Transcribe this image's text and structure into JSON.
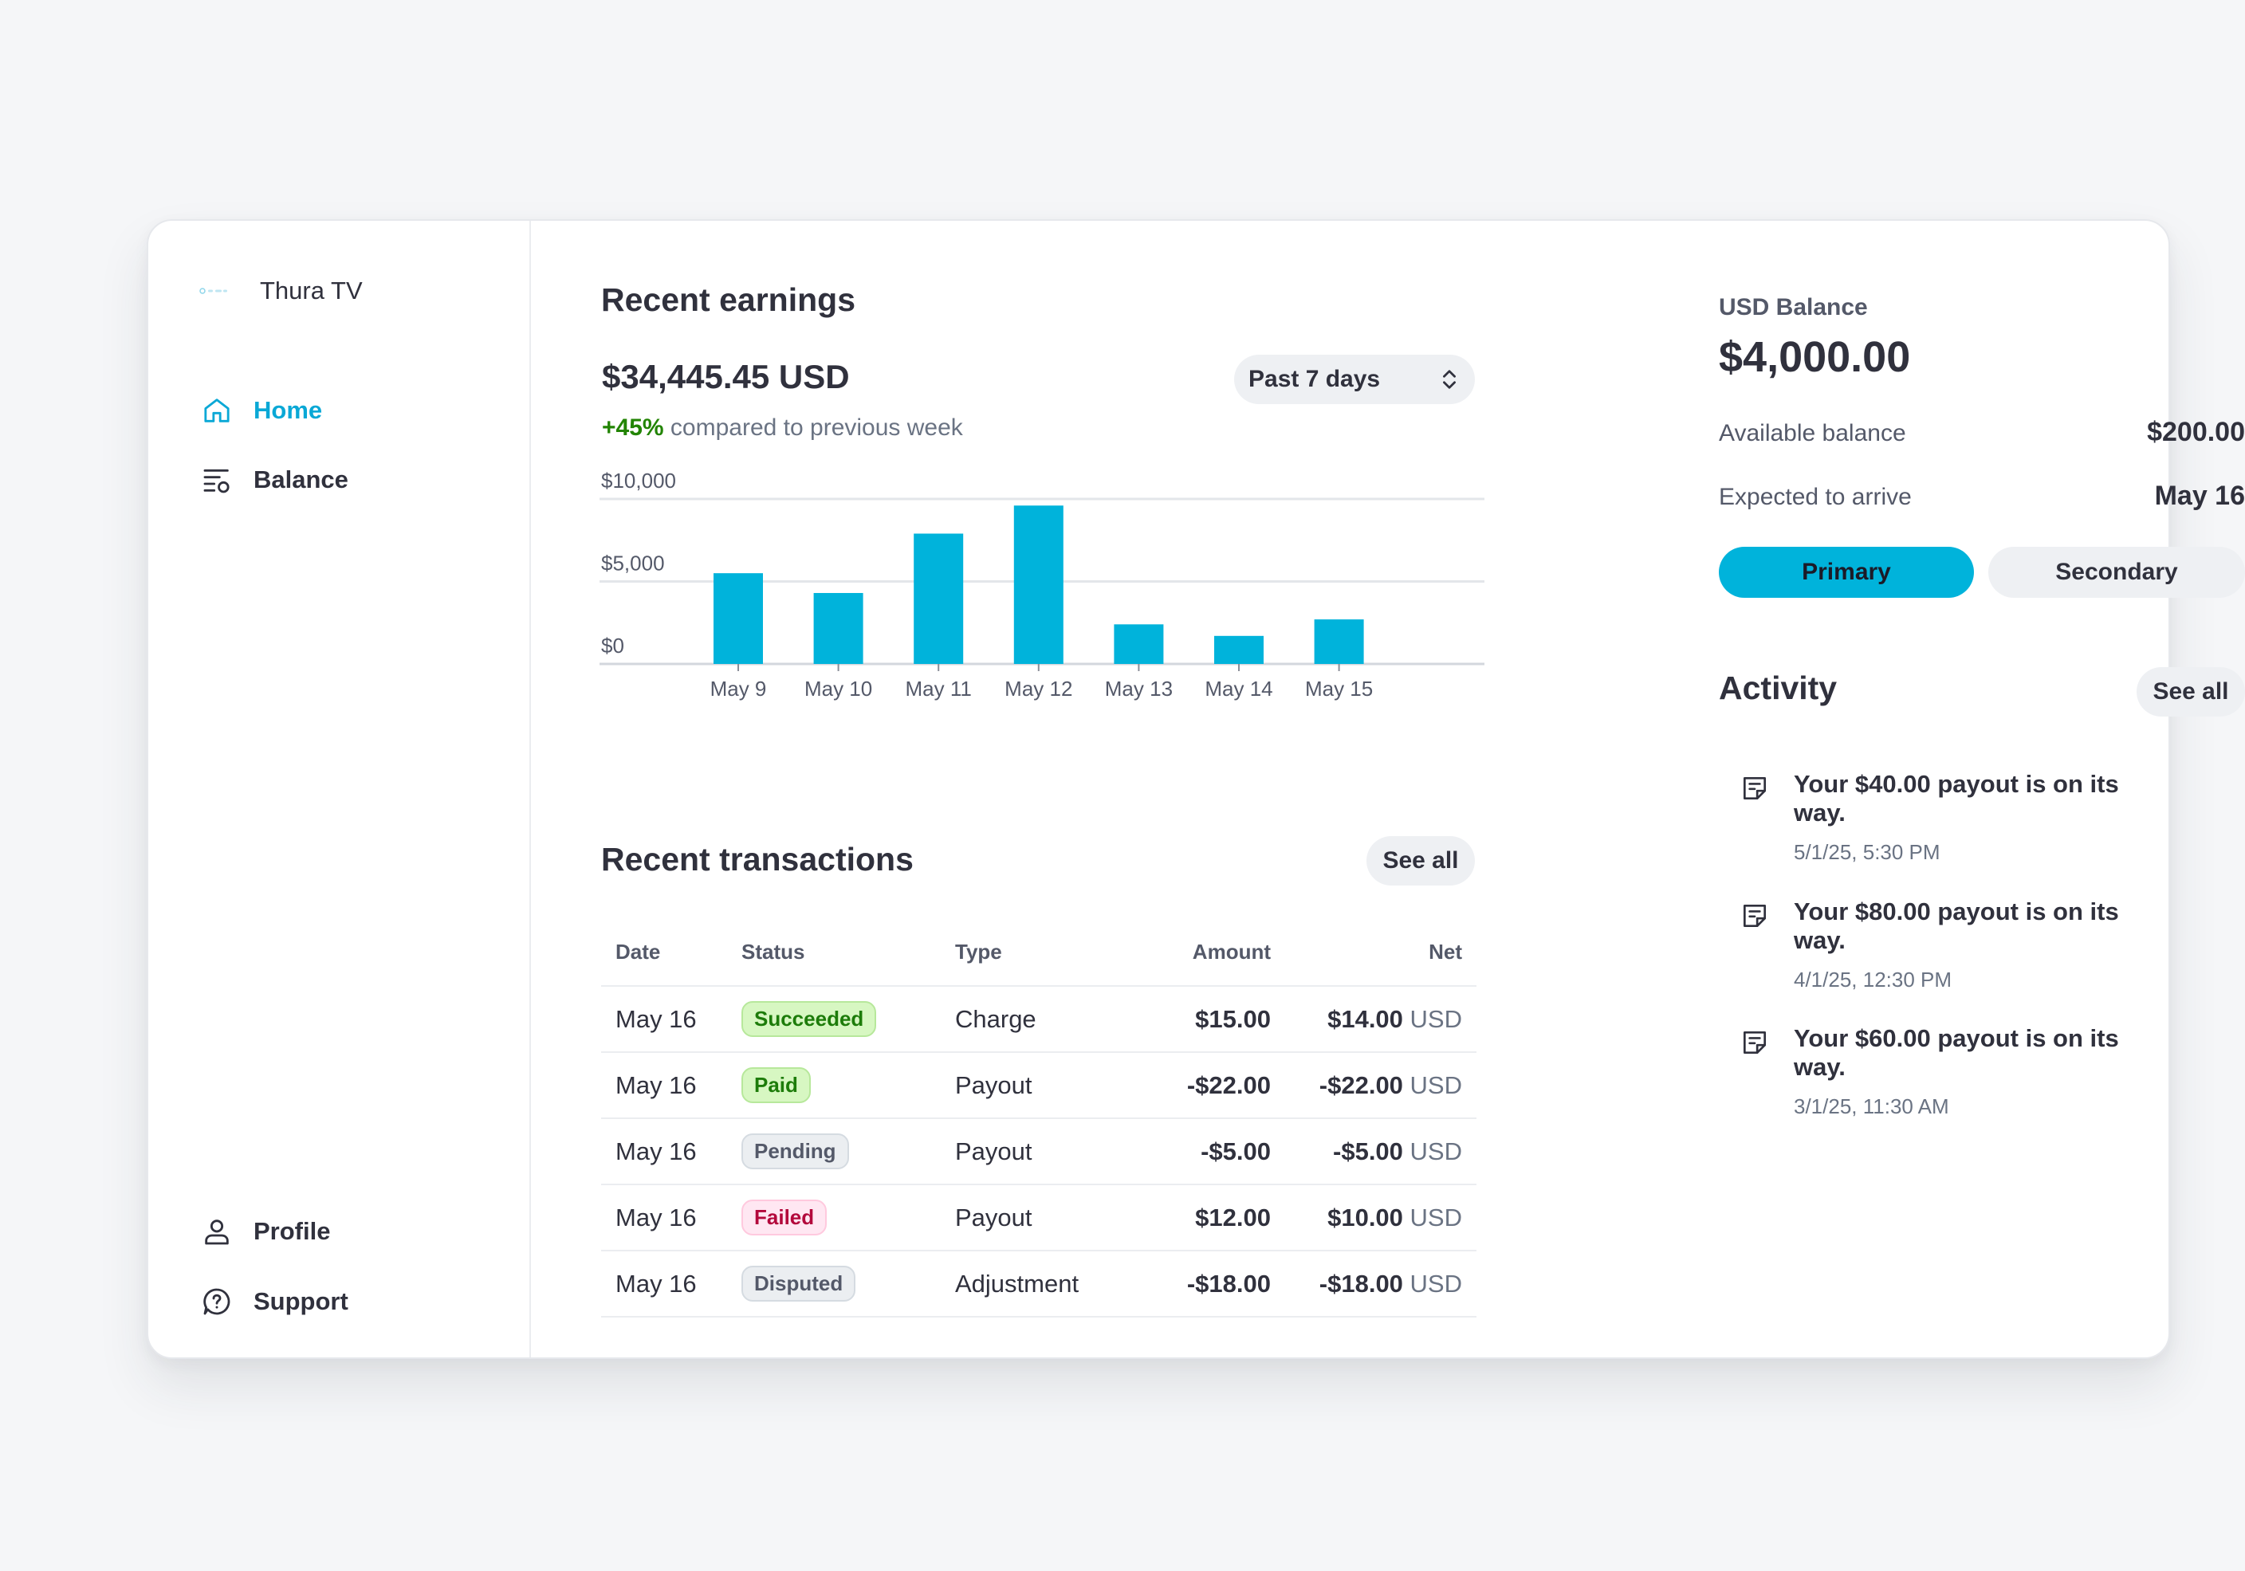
{
  "brand": {
    "name": "Thura TV"
  },
  "nav": {
    "home": "Home",
    "balance": "Balance",
    "profile": "Profile",
    "support": "Support"
  },
  "earnings": {
    "title": "Recent earnings",
    "amount": "$34,445.45 USD",
    "change": "+45%",
    "change_text": "compared to previous week",
    "period": "Past 7 days"
  },
  "chart_data": {
    "type": "bar",
    "title": "",
    "xlabel": "",
    "ylabel": "",
    "categories": [
      "May 9",
      "May 10",
      "May 11",
      "May 12",
      "May 13",
      "May 14",
      "May 15"
    ],
    "values": [
      5500,
      4300,
      7900,
      9600,
      2400,
      1700,
      2700
    ],
    "ylim": [
      0,
      10000
    ],
    "yticks": [
      "$0",
      "$5,000",
      "$10,000"
    ],
    "ytick_values": [
      0,
      5000,
      10000
    ],
    "grid": true,
    "color": "#00b3db"
  },
  "transactions": {
    "title": "Recent transactions",
    "see_all": "See all",
    "headers": [
      "Date",
      "Status",
      "Type",
      "Amount",
      "Net"
    ],
    "rows": [
      {
        "date": "May 16",
        "status": "Succeeded",
        "type": "Charge",
        "amount": "$15.00",
        "net": "$14.00",
        "unit": "USD"
      },
      {
        "date": "May 16",
        "status": "Paid",
        "type": "Payout",
        "amount": "-$22.00",
        "net": "-$22.00",
        "unit": "USD"
      },
      {
        "date": "May 16",
        "status": "Pending",
        "type": "Payout",
        "amount": "-$5.00",
        "net": "-$5.00",
        "unit": "USD"
      },
      {
        "date": "May 16",
        "status": "Failed",
        "type": "Payout",
        "amount": "$12.00",
        "net": "$10.00",
        "unit": "USD"
      },
      {
        "date": "May 16",
        "status": "Disputed",
        "type": "Adjustment",
        "amount": "-$18.00",
        "net": "-$18.00",
        "unit": "USD"
      }
    ]
  },
  "status_colors": {
    "Succeeded": {
      "bg": "#d7f7c2",
      "fg": "#1d7c0a",
      "border": "#b7e89b"
    },
    "Paid": {
      "bg": "#d7f7c2",
      "fg": "#1d7c0a",
      "border": "#b7e89b"
    },
    "Pending": {
      "bg": "#ebeef1",
      "fg": "#545969",
      "border": "#d5dbe1"
    },
    "Failed": {
      "bg": "#ffe7f2",
      "fg": "#b3093c",
      "border": "#ffc9de"
    },
    "Disputed": {
      "bg": "#ebeef1",
      "fg": "#545969",
      "border": "#d5dbe1"
    }
  },
  "balance": {
    "label": "USD Balance",
    "amount": "$4,000.00",
    "available_label": "Available balance",
    "available_value": "$200.00",
    "expected_label": "Expected to arrive",
    "expected_value": "May 16",
    "primary": "Primary",
    "secondary": "Secondary"
  },
  "activity": {
    "title": "Activity",
    "see_all": "See all",
    "items": [
      {
        "text": "Your $40.00 payout is on its way.",
        "time": "5/1/25, 5:30 PM"
      },
      {
        "text": "Your $80.00 payout is on its way.",
        "time": "4/1/25, 12:30 PM"
      },
      {
        "text": "Your $60.00 payout is on its way.",
        "time": "3/1/25, 11:30 AM"
      }
    ]
  },
  "colors": {
    "accent": "#00b3db",
    "accent_text": "#0aa8d6"
  }
}
